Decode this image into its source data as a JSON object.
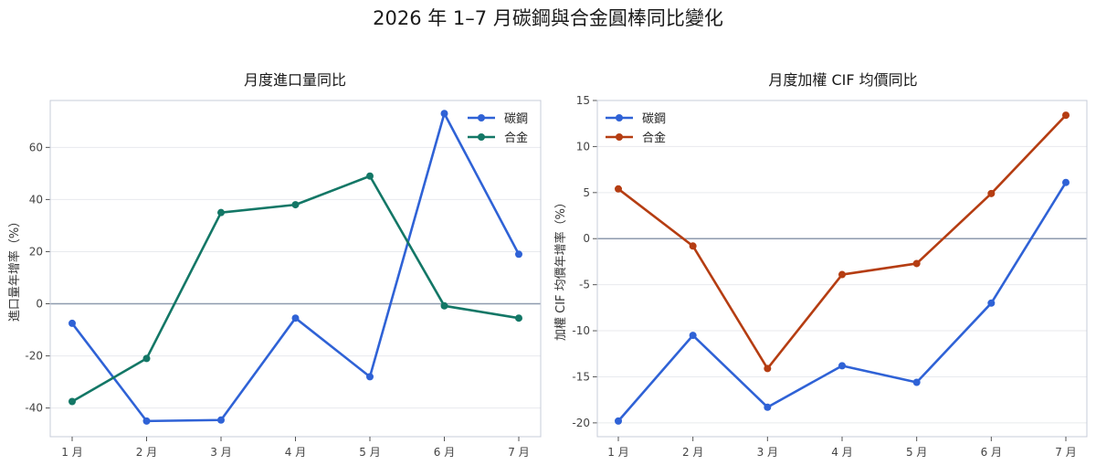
{
  "title": "2026 年 1–7 月碳鋼與合金圓棒同比變化",
  "colors": {
    "carbon_left": "#2f62d6",
    "alloy_left": "#137766",
    "carbon_right": "#2f62d6",
    "alloy_right": "#b53d12",
    "zero_line": "#8e9aae",
    "grid": "#e8eaee",
    "frame": "#c7ccd8"
  },
  "chart_data": [
    {
      "type": "line",
      "title": "月度進口量同比",
      "ylabel": "進口量年增率（%）",
      "categories": [
        "1 月",
        "2 月",
        "3 月",
        "4 月",
        "5 月",
        "6 月",
        "7 月"
      ],
      "ylim": [
        -51,
        78
      ],
      "yticks": [
        -40,
        -20,
        0,
        20,
        40,
        60
      ],
      "legend": "top-right",
      "grid": true,
      "series": [
        {
          "name": "碳鋼",
          "values": [
            -7.5,
            -45.0,
            -44.6,
            -5.5,
            -28.0,
            73.0,
            19.0
          ]
        },
        {
          "name": "合金",
          "values": [
            -37.5,
            -21.0,
            35.0,
            38.0,
            49.0,
            -0.8,
            -5.5
          ]
        }
      ]
    },
    {
      "type": "line",
      "title": "月度加權 CIF 均價同比",
      "ylabel": "加權 CIF 均價年增率（%）",
      "categories": [
        "1 月",
        "2 月",
        "3 月",
        "4 月",
        "5 月",
        "6 月",
        "7 月"
      ],
      "ylim": [
        -21.5,
        15
      ],
      "yticks": [
        -20,
        -15,
        -10,
        -5,
        0,
        5,
        10,
        15
      ],
      "legend": "top-left",
      "grid": true,
      "series": [
        {
          "name": "碳鋼",
          "values": [
            -19.8,
            -10.5,
            -18.3,
            -13.8,
            -15.6,
            -7.0,
            6.1
          ]
        },
        {
          "name": "合金",
          "values": [
            5.4,
            -0.8,
            -14.1,
            -3.9,
            -2.7,
            4.9,
            13.4
          ]
        }
      ]
    }
  ]
}
